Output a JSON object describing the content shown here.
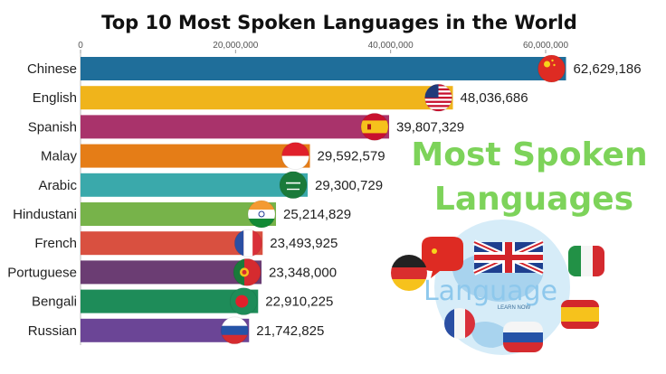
{
  "chart_data": {
    "type": "bar",
    "orientation": "horizontal",
    "title": "Top 10 Most Spoken Languages in the World",
    "categories": [
      "Chinese",
      "English",
      "Spanish",
      "Malay",
      "Arabic",
      "Hindustani",
      "French",
      "Portuguese",
      "Bengali",
      "Russian"
    ],
    "values": [
      62629186,
      48036686,
      39807329,
      29592579,
      29300729,
      25214829,
      23493925,
      23348000,
      22910225,
      21742825
    ],
    "value_labels": [
      "62,629,186",
      "48,036,686",
      "39,807,329",
      "29,592,579",
      "29,300,729",
      "25,214,829",
      "23,493,925",
      "23,348,000",
      "22,910,225",
      "21,742,825"
    ],
    "colors": [
      "#1f6e9a",
      "#f0b41b",
      "#a9336b",
      "#e57d17",
      "#3aa9ab",
      "#77b34a",
      "#d95040",
      "#6b3d73",
      "#1e8c59",
      "#6b4596"
    ],
    "flags": [
      "china-flag",
      "usa-flag",
      "spain-flag",
      "indonesia-flag",
      "saudi-arabia-flag",
      "india-flag",
      "france-flag",
      "portugal-flag",
      "bangladesh-flag",
      "russia-flag"
    ],
    "xlim": [
      0,
      64000000
    ],
    "x_ticks": [
      0,
      20000000,
      40000000,
      60000000
    ],
    "x_tick_labels": [
      "0",
      "20,000,000",
      "40,000,000",
      "60,000,000"
    ],
    "grid": false,
    "legend": "none"
  },
  "overlay": {
    "headline_line1": "Most Spoken",
    "headline_line2": "Languages",
    "graphic_word": "Language",
    "graphic_small": "LEARN NOW"
  }
}
